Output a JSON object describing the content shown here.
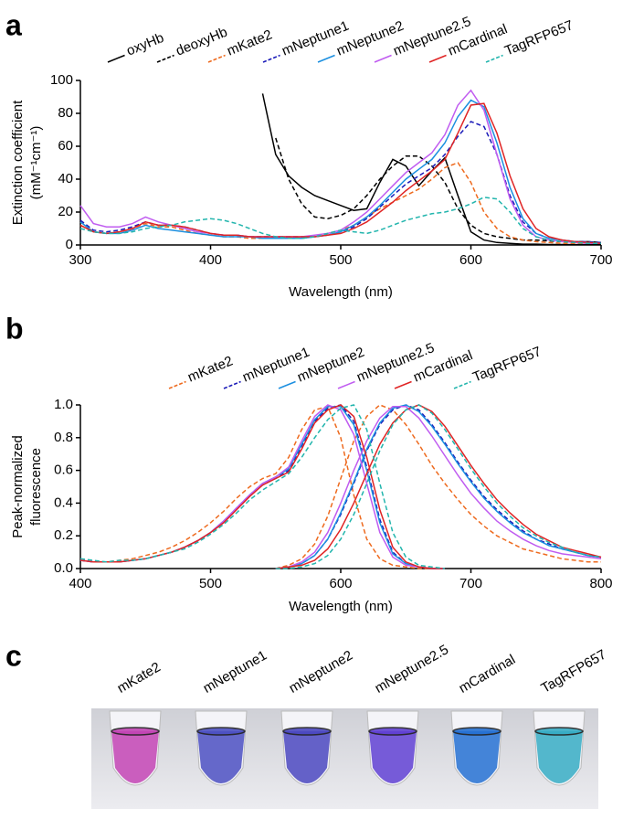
{
  "panels": [
    "a",
    "b",
    "c"
  ],
  "chart_data": [
    {
      "type": "line",
      "y_label": [
        "Extinction coefficient",
        "(mM⁻¹cm⁻¹)"
      ],
      "x_label": "Wavelength (nm)",
      "x": [
        300,
        310,
        320,
        330,
        340,
        350,
        360,
        370,
        380,
        390,
        400,
        410,
        420,
        430,
        440,
        450,
        460,
        470,
        480,
        490,
        500,
        510,
        520,
        530,
        540,
        550,
        560,
        570,
        580,
        590,
        600,
        610,
        620,
        630,
        640,
        650,
        660,
        670,
        680,
        690,
        700
      ],
      "xlim": [
        300,
        700
      ],
      "xticks": [
        300,
        400,
        500,
        600,
        700
      ],
      "ylim": [
        0,
        100
      ],
      "yticks": [
        0,
        20,
        40,
        60,
        80,
        100
      ],
      "series": [
        {
          "name": "oxyHb",
          "color": "#000000",
          "dash": false,
          "values": [
            null,
            null,
            null,
            null,
            null,
            null,
            null,
            null,
            null,
            null,
            null,
            null,
            null,
            null,
            92,
            55,
            42,
            35,
            30,
            27,
            24,
            21,
            22,
            38,
            52,
            48,
            36,
            45,
            53,
            30,
            8,
            3,
            1.5,
            1,
            0.5,
            0.5,
            0.3,
            0.3,
            0.2,
            0.2,
            0.2
          ]
        },
        {
          "name": "deoxyHb",
          "color": "#000000",
          "dash": true,
          "values": [
            null,
            null,
            null,
            null,
            null,
            null,
            null,
            null,
            null,
            null,
            null,
            null,
            null,
            null,
            null,
            65,
            40,
            25,
            17,
            16,
            18,
            22,
            30,
            40,
            48,
            54,
            54,
            48,
            38,
            22,
            12,
            7,
            5,
            4,
            3,
            3,
            2.5,
            2,
            2,
            2,
            1.5
          ]
        },
        {
          "name": "mKate2",
          "color": "#ee6a1e",
          "dash": true,
          "values": [
            12,
            8,
            7,
            8,
            10,
            13,
            11,
            11,
            9,
            7,
            6,
            5,
            5,
            4,
            4,
            4,
            4,
            5,
            5,
            7,
            9,
            12,
            17,
            22,
            26,
            30,
            34,
            40,
            47,
            50,
            38,
            20,
            10,
            5,
            3,
            2,
            1.5,
            1,
            1,
            1,
            1
          ]
        },
        {
          "name": "mNeptune1",
          "color": "#1a1ab8",
          "dash": true,
          "values": [
            15,
            9,
            8,
            9,
            11,
            14,
            12,
            12,
            11,
            9,
            7,
            6,
            6,
            5,
            5,
            5,
            5,
            5,
            5,
            6,
            8,
            11,
            16,
            23,
            30,
            37,
            42,
            47,
            55,
            66,
            75,
            72,
            55,
            30,
            14,
            7,
            4,
            3,
            2,
            2,
            1.5
          ]
        },
        {
          "name": "mNeptune2",
          "color": "#1b8fe0",
          "dash": false,
          "values": [
            14,
            8,
            7,
            7,
            9,
            12,
            10,
            9,
            8,
            7,
            6,
            5,
            5,
            5,
            4,
            4,
            4,
            4,
            5,
            6,
            8,
            12,
            17,
            24,
            32,
            40,
            46,
            52,
            62,
            78,
            88,
            84,
            62,
            35,
            16,
            7,
            4,
            3,
            2,
            1.5,
            1
          ]
        },
        {
          "name": "mNeptune2.5",
          "color": "#c05cf0",
          "dash": false,
          "values": [
            24,
            13,
            11,
            11,
            13,
            17,
            14,
            12,
            10,
            8,
            7,
            6,
            6,
            5,
            5,
            5,
            5,
            5,
            6,
            7,
            9,
            14,
            20,
            28,
            36,
            44,
            50,
            56,
            67,
            85,
            94,
            82,
            55,
            28,
            12,
            5,
            3,
            2,
            1.5,
            1,
            1
          ]
        },
        {
          "name": "mCardinal",
          "color": "#e02424",
          "dash": false,
          "values": [
            12,
            8,
            7,
            8,
            10,
            14,
            12,
            12,
            11,
            9,
            7,
            6,
            6,
            5,
            5,
            5,
            5,
            5,
            5,
            6,
            7,
            10,
            14,
            20,
            26,
            33,
            39,
            45,
            52,
            68,
            85,
            86,
            68,
            42,
            22,
            10,
            5,
            3,
            2,
            1.5,
            1
          ]
        },
        {
          "name": "TagRFP657",
          "color": "#22b5ad",
          "dash": true,
          "values": [
            10,
            8,
            7,
            7,
            8,
            10,
            11,
            12,
            14,
            15,
            16,
            15,
            13,
            10,
            7,
            5,
            4,
            4,
            5,
            7,
            9,
            8,
            7,
            9,
            12,
            15,
            17,
            19,
            20,
            22,
            25,
            29,
            28,
            20,
            10,
            5,
            3,
            2,
            1.5,
            1,
            1
          ]
        }
      ]
    },
    {
      "type": "excitation-emission",
      "y_label": [
        "Peak-normalized",
        "fluorescence"
      ],
      "x_label": "Wavelength (nm)",
      "x": [
        400,
        410,
        420,
        430,
        440,
        450,
        460,
        470,
        480,
        490,
        500,
        510,
        520,
        530,
        540,
        550,
        560,
        570,
        580,
        590,
        600,
        610,
        620,
        630,
        640,
        650,
        660,
        670,
        680,
        690,
        700,
        710,
        720,
        730,
        740,
        750,
        760,
        770,
        780,
        790,
        800
      ],
      "xlim": [
        400,
        800
      ],
      "xticks": [
        400,
        500,
        600,
        700,
        800
      ],
      "ylim": [
        0,
        1
      ],
      "yticks": [
        {
          "value": 0,
          "label": "0.0"
        },
        0.2,
        0.4,
        0.6,
        0.8,
        {
          "value": 1,
          "label": "1.0"
        }
      ],
      "series": [
        {
          "name": "mKate2",
          "color": "#ee6a1e",
          "dash": true,
          "excitation": [
            0.05,
            0.04,
            0.04,
            0.05,
            0.06,
            0.08,
            0.1,
            0.13,
            0.17,
            0.22,
            0.28,
            0.35,
            0.43,
            0.5,
            0.55,
            0.58,
            0.68,
            0.85,
            0.97,
            0.99,
            0.8,
            0.45,
            0.18,
            0.06,
            0.02,
            0.01,
            0,
            0,
            0,
            null,
            null,
            null,
            null,
            null,
            null,
            null,
            null,
            null,
            null,
            null,
            null
          ],
          "emission": [
            null,
            null,
            null,
            null,
            null,
            null,
            null,
            null,
            null,
            null,
            null,
            null,
            null,
            null,
            null,
            0,
            0.02,
            0.06,
            0.15,
            0.32,
            0.55,
            0.78,
            0.93,
            1.0,
            0.97,
            0.88,
            0.76,
            0.63,
            0.52,
            0.42,
            0.33,
            0.26,
            0.2,
            0.16,
            0.12,
            0.1,
            0.08,
            0.06,
            0.05,
            0.04,
            0.04
          ]
        },
        {
          "name": "mNeptune1",
          "color": "#1a1ab8",
          "dash": true,
          "excitation": [
            0.05,
            0.04,
            0.04,
            0.04,
            0.05,
            0.06,
            0.08,
            0.1,
            0.13,
            0.17,
            0.22,
            0.29,
            0.37,
            0.45,
            0.52,
            0.55,
            0.6,
            0.75,
            0.9,
            0.98,
            1.0,
            0.9,
            0.62,
            0.3,
            0.1,
            0.03,
            0.01,
            0,
            0,
            null,
            null,
            null,
            null,
            null,
            null,
            null,
            null,
            null,
            null,
            null,
            null
          ],
          "emission": [
            null,
            null,
            null,
            null,
            null,
            null,
            null,
            null,
            null,
            null,
            null,
            null,
            null,
            null,
            null,
            0,
            0.01,
            0.03,
            0.08,
            0.18,
            0.33,
            0.52,
            0.72,
            0.88,
            0.97,
            1.0,
            0.97,
            0.88,
            0.77,
            0.65,
            0.54,
            0.44,
            0.36,
            0.29,
            0.23,
            0.18,
            0.15,
            0.12,
            0.1,
            0.08,
            0.07
          ]
        },
        {
          "name": "mNeptune2",
          "color": "#1b8fe0",
          "dash": false,
          "excitation": [
            0.05,
            0.04,
            0.04,
            0.04,
            0.05,
            0.06,
            0.08,
            0.1,
            0.13,
            0.17,
            0.22,
            0.29,
            0.37,
            0.45,
            0.52,
            0.56,
            0.61,
            0.76,
            0.91,
            0.99,
            0.99,
            0.88,
            0.6,
            0.28,
            0.09,
            0.03,
            0.01,
            0,
            0,
            null,
            null,
            null,
            null,
            null,
            null,
            null,
            null,
            null,
            null,
            null,
            null
          ],
          "emission": [
            null,
            null,
            null,
            null,
            null,
            null,
            null,
            null,
            null,
            null,
            null,
            null,
            null,
            null,
            null,
            0,
            0.01,
            0.03,
            0.08,
            0.18,
            0.34,
            0.53,
            0.73,
            0.89,
            0.98,
            1.0,
            0.96,
            0.87,
            0.76,
            0.64,
            0.53,
            0.43,
            0.35,
            0.28,
            0.22,
            0.18,
            0.14,
            0.12,
            0.1,
            0.08,
            0.07
          ]
        },
        {
          "name": "mNeptune2.5",
          "color": "#c05cf0",
          "dash": false,
          "excitation": [
            0.05,
            0.04,
            0.04,
            0.04,
            0.05,
            0.06,
            0.08,
            0.1,
            0.13,
            0.17,
            0.22,
            0.29,
            0.37,
            0.45,
            0.52,
            0.56,
            0.62,
            0.78,
            0.93,
            1.0,
            0.97,
            0.82,
            0.52,
            0.22,
            0.07,
            0.02,
            0.01,
            0,
            0,
            null,
            null,
            null,
            null,
            null,
            null,
            null,
            null,
            null,
            null,
            null,
            null
          ],
          "emission": [
            null,
            null,
            null,
            null,
            null,
            null,
            null,
            null,
            null,
            null,
            null,
            null,
            null,
            null,
            null,
            0,
            0.01,
            0.04,
            0.1,
            0.22,
            0.4,
            0.6,
            0.78,
            0.92,
            0.99,
            0.99,
            0.92,
            0.81,
            0.69,
            0.57,
            0.46,
            0.37,
            0.29,
            0.23,
            0.18,
            0.14,
            0.11,
            0.09,
            0.08,
            0.07,
            0.06
          ]
        },
        {
          "name": "mCardinal",
          "color": "#e02424",
          "dash": false,
          "excitation": [
            0.05,
            0.04,
            0.04,
            0.04,
            0.05,
            0.06,
            0.08,
            0.1,
            0.13,
            0.17,
            0.22,
            0.28,
            0.36,
            0.44,
            0.51,
            0.55,
            0.59,
            0.73,
            0.89,
            0.97,
            1.0,
            0.93,
            0.68,
            0.36,
            0.13,
            0.04,
            0.01,
            0,
            0,
            null,
            null,
            null,
            null,
            null,
            null,
            null,
            null,
            null,
            null,
            null,
            null
          ],
          "emission": [
            null,
            null,
            null,
            null,
            null,
            null,
            null,
            null,
            null,
            null,
            null,
            null,
            null,
            null,
            null,
            0,
            0.01,
            0.02,
            0.05,
            0.12,
            0.24,
            0.4,
            0.58,
            0.76,
            0.89,
            0.97,
            1.0,
            0.96,
            0.87,
            0.75,
            0.63,
            0.52,
            0.42,
            0.34,
            0.27,
            0.21,
            0.17,
            0.13,
            0.11,
            0.09,
            0.07
          ]
        },
        {
          "name": "TagRFP657",
          "color": "#22b5ad",
          "dash": true,
          "excitation": [
            0.06,
            0.05,
            0.04,
            0.05,
            0.05,
            0.06,
            0.08,
            0.1,
            0.12,
            0.16,
            0.21,
            0.27,
            0.34,
            0.42,
            0.48,
            0.53,
            0.58,
            0.68,
            0.8,
            0.91,
            0.98,
            1.0,
            0.85,
            0.52,
            0.22,
            0.07,
            0.02,
            0.01,
            0,
            null,
            null,
            null,
            null,
            null,
            null,
            null,
            null,
            null,
            null,
            null,
            null
          ],
          "emission": [
            null,
            null,
            null,
            null,
            null,
            null,
            null,
            null,
            null,
            null,
            null,
            null,
            null,
            null,
            null,
            0,
            0,
            0.01,
            0.03,
            0.08,
            0.18,
            0.33,
            0.52,
            0.72,
            0.88,
            0.97,
            1.0,
            0.95,
            0.85,
            0.73,
            0.61,
            0.5,
            0.4,
            0.32,
            0.25,
            0.2,
            0.16,
            0.13,
            0.1,
            0.08,
            0.07
          ]
        }
      ]
    }
  ],
  "photo": {
    "labels": [
      "mKate2",
      "mNeptune1",
      "mNeptune2",
      "mNeptune2.5",
      "mCardinal",
      "TagRFP657"
    ]
  }
}
